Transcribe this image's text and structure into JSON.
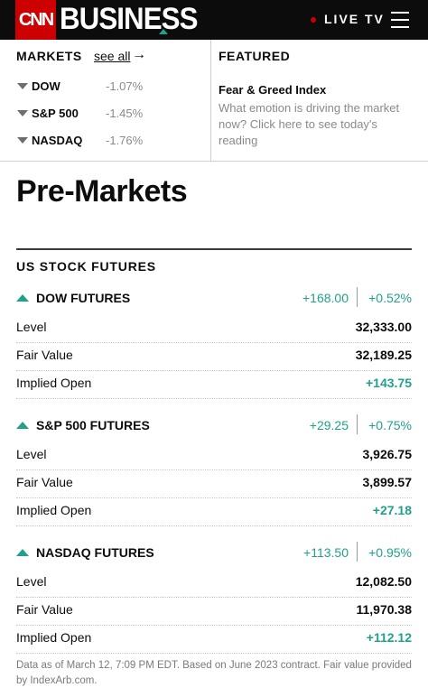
{
  "header": {
    "logo": "CNN",
    "section": "BUSINESS",
    "live_label": "LIVE TV"
  },
  "markets": {
    "title": "MARKETS",
    "see_all": "see all",
    "items": [
      {
        "name": "DOW",
        "change": "-1.07%"
      },
      {
        "name": "S&P 500",
        "change": "-1.45%"
      },
      {
        "name": "NASDAQ",
        "change": "-1.76%"
      }
    ]
  },
  "featured": {
    "title": "FEATURED",
    "headline": "Fear & Greed Index",
    "description": "What emotion is driving the market now? Click here to see today's reading"
  },
  "page": {
    "title": "Pre-Markets",
    "section_title": "US STOCK FUTURES"
  },
  "futures": [
    {
      "name": "DOW FUTURES",
      "change": "+168.00",
      "percent": "+0.52%",
      "rows": [
        {
          "label": "Level",
          "value": "32,333.00"
        },
        {
          "label": "Fair Value",
          "value": "32,189.25"
        },
        {
          "label": "Implied Open",
          "value": "+143.75"
        }
      ]
    },
    {
      "name": "S&P 500 FUTURES",
      "change": "+29.25",
      "percent": "+0.75%",
      "rows": [
        {
          "label": "Level",
          "value": "3,926.75"
        },
        {
          "label": "Fair Value",
          "value": "3,899.57"
        },
        {
          "label": "Implied Open",
          "value": "+27.18"
        }
      ]
    },
    {
      "name": "NASDAQ FUTURES",
      "change": "+113.50",
      "percent": "+0.95%",
      "rows": [
        {
          "label": "Level",
          "value": "12,082.50"
        },
        {
          "label": "Fair Value",
          "value": "11,970.38"
        },
        {
          "label": "Implied Open",
          "value": "+112.12"
        }
      ]
    }
  ],
  "footnote": "Data as of March 12, 7:09 PM EDT. Based on June 2023 contract. Fair value provided by IndexArb.com.",
  "colors": {
    "brand_red": "#cc0000",
    "positive_green": "#21a18c",
    "muted_gray": "#8a8a8a"
  }
}
